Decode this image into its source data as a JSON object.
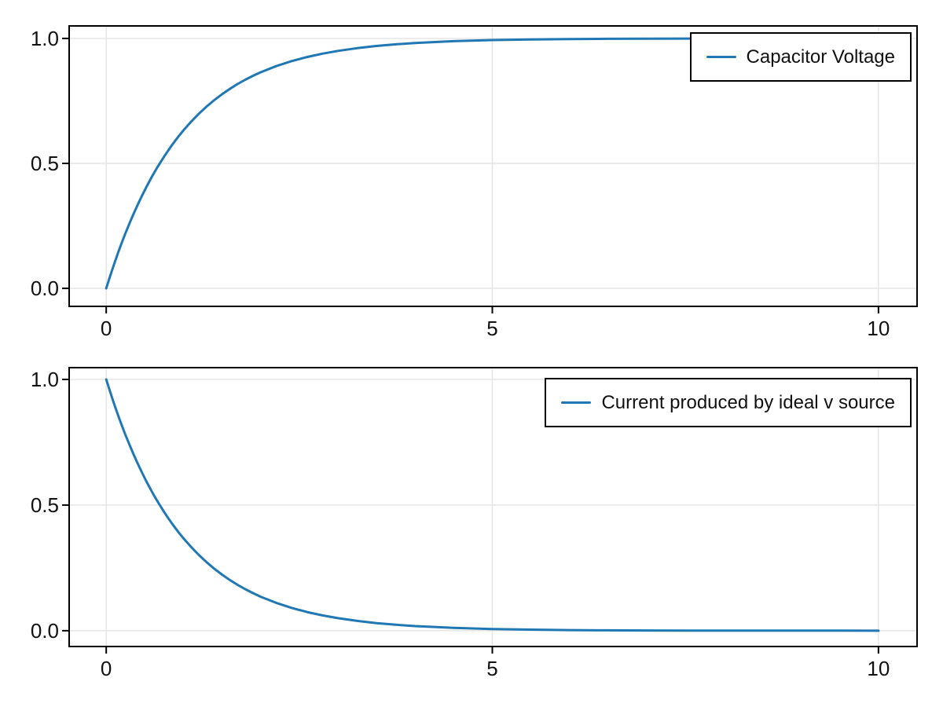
{
  "figure": {
    "background": "#ffffff"
  },
  "colors": {
    "series_blue": "#1f77b4",
    "grid": "#e3e3e3",
    "frame": "#000000",
    "tick": "#000000",
    "legend_border": "#000000",
    "legend_background": "#ffffff",
    "text": "#111111"
  },
  "chart_data": [
    {
      "type": "line",
      "title": "",
      "xlabel": "",
      "ylabel": "",
      "grid": true,
      "legend_position": "top-right",
      "xlim": [
        -0.48,
        10.5
      ],
      "ylim": [
        -0.072,
        1.05
      ],
      "xticks": {
        "values": [
          0,
          5,
          10
        ],
        "labels": [
          "0",
          "5",
          "10"
        ]
      },
      "yticks": {
        "values": [
          0,
          0.5,
          1
        ],
        "labels": [
          "0.0",
          "0.5",
          "1.0"
        ]
      },
      "series": [
        {
          "name": "Capacitor Voltage",
          "color": "#1f77b4",
          "function": "v(t) = 1 - exp(-t)",
          "x": [
            0,
            0.05,
            0.1,
            0.15,
            0.2,
            0.25,
            0.3,
            0.35,
            0.4,
            0.45,
            0.5,
            0.55,
            0.6,
            0.65,
            0.7,
            0.75,
            0.8,
            0.85,
            0.9,
            0.95,
            1,
            1.1,
            1.2,
            1.3,
            1.4,
            1.5,
            1.6,
            1.7,
            1.8,
            1.9,
            2,
            2.2,
            2.4,
            2.6,
            2.8,
            3,
            3.25,
            3.5,
            3.75,
            4,
            4.5,
            5,
            5.5,
            6,
            6.5,
            7,
            7.5,
            8,
            8.5,
            9,
            9.5,
            10
          ],
          "y": [
            0,
            0.0488,
            0.0952,
            0.1393,
            0.1813,
            0.2212,
            0.2592,
            0.2953,
            0.3297,
            0.3624,
            0.3935,
            0.4231,
            0.4512,
            0.478,
            0.5034,
            0.5276,
            0.5507,
            0.5726,
            0.5934,
            0.6133,
            0.6321,
            0.6671,
            0.6988,
            0.7275,
            0.7534,
            0.7769,
            0.7981,
            0.8173,
            0.8347,
            0.8504,
            0.8647,
            0.8892,
            0.9093,
            0.9257,
            0.9392,
            0.9502,
            0.9612,
            0.9698,
            0.9765,
            0.9817,
            0.9889,
            0.9933,
            0.9959,
            0.9975,
            0.9985,
            0.9991,
            0.9994,
            0.9997,
            0.9998,
            0.9999,
            0.9999,
            1
          ]
        }
      ]
    },
    {
      "type": "line",
      "title": "",
      "xlabel": "",
      "ylabel": "",
      "grid": true,
      "legend_position": "top-right",
      "xlim": [
        -0.48,
        10.5
      ],
      "ylim": [
        -0.063,
        1.047
      ],
      "xticks": {
        "values": [
          0,
          5,
          10
        ],
        "labels": [
          "0",
          "5",
          "10"
        ]
      },
      "yticks": {
        "values": [
          0,
          0.5,
          1
        ],
        "labels": [
          "0.0",
          "0.5",
          "1.0"
        ]
      },
      "series": [
        {
          "name": "Current produced by ideal v source",
          "color": "#1f77b4",
          "function": "i(t) = exp(-t)",
          "x": [
            0,
            0.05,
            0.1,
            0.15,
            0.2,
            0.25,
            0.3,
            0.35,
            0.4,
            0.45,
            0.5,
            0.55,
            0.6,
            0.65,
            0.7,
            0.75,
            0.8,
            0.85,
            0.9,
            0.95,
            1,
            1.1,
            1.2,
            1.3,
            1.4,
            1.5,
            1.6,
            1.7,
            1.8,
            1.9,
            2,
            2.2,
            2.4,
            2.6,
            2.8,
            3,
            3.25,
            3.5,
            3.75,
            4,
            4.5,
            5,
            5.5,
            6,
            6.5,
            7,
            7.5,
            8,
            8.5,
            9,
            9.5,
            10
          ],
          "y": [
            1,
            0.9512,
            0.9048,
            0.8607,
            0.8187,
            0.7788,
            0.7408,
            0.7047,
            0.6703,
            0.6376,
            0.6065,
            0.5769,
            0.5488,
            0.522,
            0.4966,
            0.4724,
            0.4493,
            0.4274,
            0.4066,
            0.3867,
            0.3679,
            0.3329,
            0.3012,
            0.2725,
            0.2466,
            0.2231,
            0.2019,
            0.1827,
            0.1653,
            0.1496,
            0.1353,
            0.1108,
            0.0907,
            0.0743,
            0.0608,
            0.0498,
            0.0388,
            0.0302,
            0.0235,
            0.0183,
            0.0111,
            0.0067,
            0.0041,
            0.0025,
            0.0015,
            0.0009,
            0.0006,
            0.0003,
            0.0002,
            0.0001,
            0.0001,
            0
          ]
        }
      ]
    }
  ]
}
